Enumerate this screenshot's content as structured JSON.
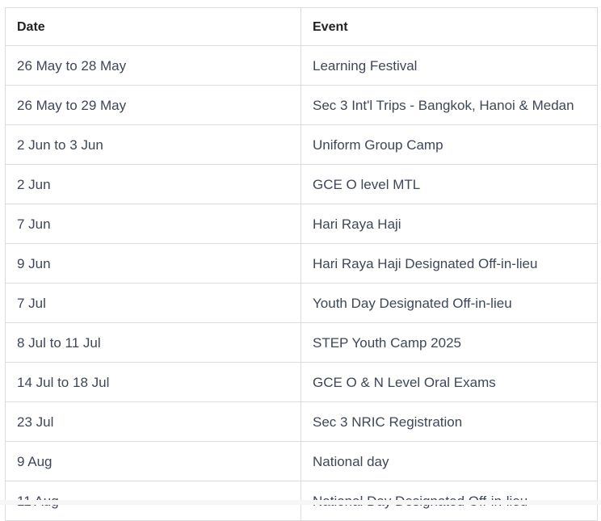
{
  "table": {
    "headers": [
      "Date",
      "Event"
    ],
    "rows": [
      {
        "date": "26 May to 28 May",
        "event": "Learning Festival"
      },
      {
        "date": "26 May to 29 May",
        "event": "Sec 3 Int'l Trips - Bangkok, Hanoi & Medan"
      },
      {
        "date": "2 Jun to 3 Jun",
        "event": "Uniform Group Camp"
      },
      {
        "date": "2 Jun",
        "event": "GCE O level MTL"
      },
      {
        "date": "7 Jun",
        "event": "Hari Raya Haji"
      },
      {
        "date": "9 Jun",
        "event": "Hari Raya Haji Designated Off-in-lieu"
      },
      {
        "date": "7 Jul",
        "event": "Youth Day Designated Off-in-lieu"
      },
      {
        "date": "8 Jul to 11 Jul",
        "event": "STEP Youth Camp 2025"
      },
      {
        "date": "14 Jul to 18 Jul",
        "event": "GCE O & N Level Oral Exams"
      },
      {
        "date": "23 Jul",
        "event": "Sec 3 NRIC Registration"
      },
      {
        "date": "9 Aug",
        "event": "National day"
      },
      {
        "date": "11 Aug",
        "event": "National Day Designated Off-in-lieu"
      }
    ]
  }
}
